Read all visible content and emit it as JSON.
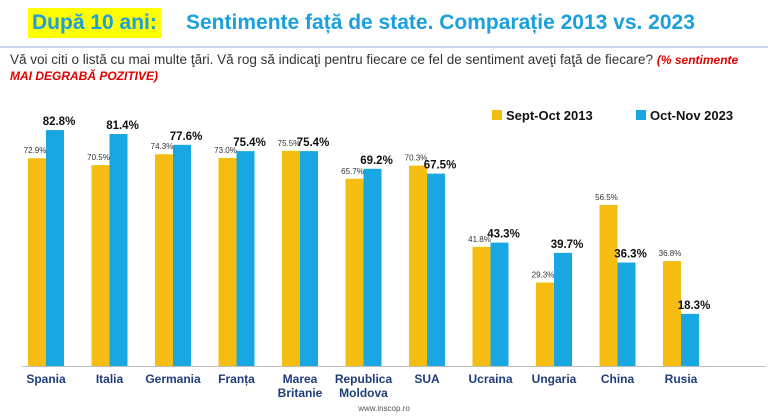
{
  "header": {
    "title_highlight": "După 10 ani:",
    "title_rest": "Sentimente față de state. Comparație 2013 vs. 2023"
  },
  "question": {
    "text": "Vă voi citi o listă cu mai multe ţări. Vă rog să indicaţi pentru fiecare ce fel de sentiment aveţi faţă de fiecare?",
    "note": "(% sentimente  MAI DEGRABĂ POZITIVE)"
  },
  "footer": {
    "source": "www.inscop.ro"
  },
  "colors": {
    "series_2013": "#f5bd12",
    "series_2023": "#19a7e3",
    "title": "#1aa0dc"
  },
  "chart_data": {
    "type": "bar",
    "categories": [
      "Spania",
      "Italia",
      "Germania",
      "Franța",
      "Marea Britanie",
      "Republica Moldova",
      "SUA",
      "Ucraina",
      "Ungaria",
      "China",
      "Rusia"
    ],
    "series": [
      {
        "name": "Sept-Oct 2013",
        "values": [
          72.9,
          70.5,
          74.3,
          73.0,
          75.5,
          65.7,
          70.3,
          41.8,
          29.3,
          56.5,
          36.8
        ]
      },
      {
        "name": "Oct-Nov 2023",
        "values": [
          82.8,
          81.4,
          77.6,
          75.4,
          75.4,
          69.2,
          67.5,
          43.3,
          39.7,
          36.3,
          18.3
        ]
      }
    ],
    "legend_position": "top-right",
    "ylim": [
      0,
      100
    ],
    "grid": false
  }
}
